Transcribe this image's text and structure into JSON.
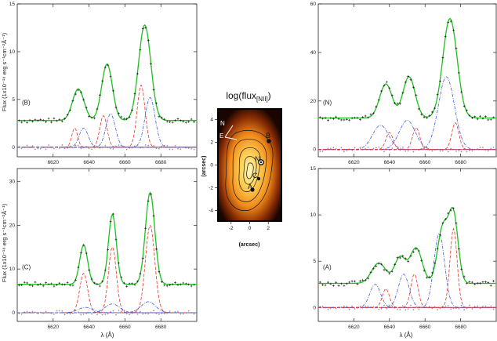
{
  "colors": {
    "data": "#111111",
    "fit": "#1fbf1f",
    "red_component": "#e8332a",
    "blue_component": "#3f5be0",
    "residual": "#777777",
    "map_bg": "#000000"
  },
  "shared": {
    "xlabel": "λ (Å)",
    "ylabel": "Flux (1x10⁻¹⁸ erg s⁻¹cm⁻²Å⁻¹)",
    "x_ticks": [
      "6620",
      "6640",
      "6660",
      "6680"
    ]
  },
  "center_map": {
    "title": "log(flux",
    "title_sub": "[NII]",
    "title_close": ")",
    "xlabel": "(arcsec)",
    "ylabel": "(arcsec)",
    "compass_n": "N",
    "compass_e": "E",
    "x_ticks": [
      "-2",
      "0",
      "2"
    ],
    "y_ticks": [
      "4",
      "2",
      "0",
      "-2",
      "-4"
    ],
    "labels": {
      "B": "B",
      "N": "N",
      "C": "C",
      "A": "A"
    }
  },
  "chart_data": [
    {
      "id": "B",
      "type": "line",
      "label": "(B)",
      "xlim": [
        6600,
        6700
      ],
      "ylim": [
        -1,
        15
      ],
      "y_ticks": [
        "0",
        "5",
        "10",
        "15"
      ],
      "continuum": 2.8,
      "peaks": [
        {
          "center": 6634,
          "amp": 3.3,
          "sigma": 3.2
        },
        {
          "center": 6650,
          "amp": 5.9,
          "sigma": 3.0
        },
        {
          "center": 6671,
          "amp": 10.0,
          "sigma": 3.4
        }
      ],
      "components": [
        {
          "color": "red",
          "center": 6632,
          "amp": 2.0,
          "sigma": 1.6
        },
        {
          "color": "blue",
          "center": 6637,
          "amp": 2.0,
          "sigma": 2.5
        },
        {
          "color": "red",
          "center": 6648,
          "amp": 3.3,
          "sigma": 2.0
        },
        {
          "color": "blue",
          "center": 6652,
          "amp": 3.5,
          "sigma": 2.6
        },
        {
          "color": "red",
          "center": 6669,
          "amp": 6.5,
          "sigma": 2.2
        },
        {
          "color": "blue",
          "center": 6674,
          "amp": 5.2,
          "sigma": 2.8
        }
      ]
    },
    {
      "id": "N",
      "type": "line",
      "label": "(N)",
      "xlim": [
        6600,
        6700
      ],
      "ylim": [
        -3,
        60
      ],
      "y_ticks": [
        "0",
        "20",
        "40",
        "60"
      ],
      "continuum": 13,
      "peaks": [
        {
          "center": 6638,
          "amp": 14,
          "sigma": 3.5
        },
        {
          "center": 6651,
          "amp": 17,
          "sigma": 3.4
        },
        {
          "center": 6674,
          "amp": 41,
          "sigma": 4.0
        }
      ],
      "components": [
        {
          "color": "blue",
          "center": 6635,
          "amp": 10,
          "sigma": 4.5
        },
        {
          "color": "red",
          "center": 6640,
          "amp": 7,
          "sigma": 2.0
        },
        {
          "color": "blue",
          "center": 6650,
          "amp": 12,
          "sigma": 4.5
        },
        {
          "color": "red",
          "center": 6655,
          "amp": 9,
          "sigma": 2.0
        },
        {
          "color": "blue",
          "center": 6672,
          "amp": 30,
          "sigma": 4.5
        },
        {
          "color": "red",
          "center": 6677,
          "amp": 11,
          "sigma": 2.0
        }
      ]
    },
    {
      "id": "C",
      "type": "line",
      "label": "(C)",
      "xlim": [
        6600,
        6700
      ],
      "ylim": [
        -2,
        33
      ],
      "y_ticks": [
        "0",
        "10",
        "20",
        "30"
      ],
      "continuum": 6.5,
      "peaks": [
        {
          "center": 6637,
          "amp": 9,
          "sigma": 2.2
        },
        {
          "center": 6653,
          "amp": 16,
          "sigma": 2.2
        },
        {
          "center": 6674,
          "amp": 21,
          "sigma": 2.6
        }
      ],
      "components": [
        {
          "color": "red",
          "center": 6637,
          "amp": 9,
          "sigma": 2.2
        },
        {
          "color": "blue",
          "center": 6638,
          "amp": 1.2,
          "sigma": 4.0
        },
        {
          "color": "red",
          "center": 6653,
          "amp": 15,
          "sigma": 2.2
        },
        {
          "color": "blue",
          "center": 6653,
          "amp": 2.0,
          "sigma": 4.0
        },
        {
          "color": "red",
          "center": 6674,
          "amp": 20,
          "sigma": 2.6
        },
        {
          "color": "blue",
          "center": 6673,
          "amp": 2.5,
          "sigma": 4.0
        }
      ]
    },
    {
      "id": "A",
      "type": "line",
      "label": "(A)",
      "xlim": [
        6600,
        6700
      ],
      "ylim": [
        -1.5,
        15
      ],
      "y_ticks": [
        "0",
        "5",
        "10",
        "15"
      ],
      "continuum": 2.6,
      "peaks": [
        {
          "center": 6634,
          "amp": 2.2,
          "sigma": 4.0
        },
        {
          "center": 6646,
          "amp": 2.8,
          "sigma": 3.2
        },
        {
          "center": 6655,
          "amp": 3.8,
          "sigma": 3.4
        },
        {
          "center": 6670,
          "amp": 6.0,
          "sigma": 3.0
        },
        {
          "center": 6676,
          "amp": 7.2,
          "sigma": 2.6
        }
      ],
      "components": [
        {
          "color": "blue",
          "center": 6632,
          "amp": 2.5,
          "sigma": 3.0
        },
        {
          "color": "red",
          "center": 6638,
          "amp": 2.0,
          "sigma": 2.0
        },
        {
          "color": "blue",
          "center": 6648,
          "amp": 3.6,
          "sigma": 3.0
        },
        {
          "color": "red",
          "center": 6654,
          "amp": 3.6,
          "sigma": 2.0
        },
        {
          "color": "blue",
          "center": 6668,
          "amp": 8.0,
          "sigma": 3.0
        },
        {
          "color": "red",
          "center": 6676,
          "amp": 8.5,
          "sigma": 2.0
        }
      ]
    }
  ]
}
